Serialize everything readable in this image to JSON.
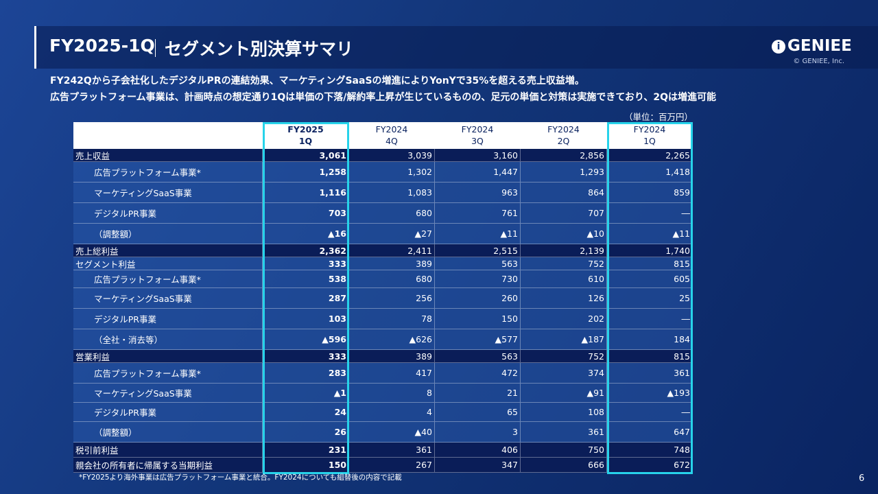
{
  "header": {
    "title": "FY2025-1Q",
    "subtitle": "セグメント別決算サマリ",
    "logo": "GENIEE",
    "copyright": "© GENIEE, Inc."
  },
  "summary": [
    "FY242Qから子会社化したデジタルPRの連結効果、マーケティングSaaSの増進によりYonYで35%を超える売上収益増。",
    "広告プラットフォーム事業は、計画時点の想定通り1Qは単価の下落/解約率上昇が生じているものの、足元の単価と対策は実施できており、2Qは増進可能"
  ],
  "unit": "（単位：百万円）",
  "table": {
    "columns": [
      [
        "FY2025",
        "1Q"
      ],
      [
        "FY2024",
        "4Q"
      ],
      [
        "FY2024",
        "3Q"
      ],
      [
        "FY2024",
        "2Q"
      ],
      [
        "FY2024",
        "1Q"
      ]
    ],
    "rows": [
      {
        "label": "売上収益",
        "cells": [
          "3,061",
          "3,039",
          "3,160",
          "2,856",
          "2,265"
        ]
      },
      {
        "label": "広告プラットフォーム事業*",
        "cells": [
          "1,258",
          "1,302",
          "1,447",
          "1,293",
          "1,418"
        ]
      },
      {
        "label": "マーケティングSaaS事業",
        "cells": [
          "1,116",
          "1,083",
          "963",
          "864",
          "859"
        ]
      },
      {
        "label": "デジタルPR事業",
        "cells": [
          "703",
          "680",
          "761",
          "707",
          "―"
        ]
      },
      {
        "label": "（調整額）",
        "cells": [
          "▲16",
          "▲27",
          "▲11",
          "▲10",
          "▲11"
        ]
      },
      {
        "label": "売上総利益",
        "cells": [
          "2,362",
          "2,411",
          "2,515",
          "2,139",
          "1,740"
        ]
      },
      {
        "label": "セグメント利益",
        "cells": [
          "333",
          "389",
          "563",
          "752",
          "815"
        ]
      },
      {
        "label": "広告プラットフォーム事業*",
        "cells": [
          "538",
          "680",
          "730",
          "610",
          "605"
        ]
      },
      {
        "label": "マーケティングSaaS事業",
        "cells": [
          "287",
          "256",
          "260",
          "126",
          "25"
        ]
      },
      {
        "label": "デジタルPR事業",
        "cells": [
          "103",
          "78",
          "150",
          "202",
          "―"
        ]
      },
      {
        "label": "（全社・消去等）",
        "cells": [
          "▲596",
          "▲626",
          "▲577",
          "▲187",
          "184"
        ]
      },
      {
        "label": "営業利益",
        "cells": [
          "333",
          "389",
          "563",
          "752",
          "815"
        ]
      },
      {
        "label": "広告プラットフォーム事業*",
        "cells": [
          "283",
          "417",
          "472",
          "374",
          "361"
        ]
      },
      {
        "label": "マーケティングSaaS事業",
        "cells": [
          "▲1",
          "8",
          "21",
          "▲91",
          "▲193"
        ]
      },
      {
        "label": "デジタルPR事業",
        "cells": [
          "24",
          "4",
          "65",
          "108",
          "―"
        ]
      },
      {
        "label": "（調整額）",
        "cells": [
          "26",
          "▲40",
          "3",
          "361",
          "647"
        ]
      },
      {
        "label": "税引前利益",
        "cells": [
          "231",
          "361",
          "406",
          "750",
          "748"
        ]
      },
      {
        "label": "親会社の所有者に帰属する当期利益",
        "cells": [
          "150",
          "267",
          "347",
          "666",
          "672"
        ]
      }
    ]
  },
  "footnote": "*FY2025より海外事業は広告プラットフォーム事業と統合。FY2024についても組替後の内容で記載",
  "page": "6"
}
